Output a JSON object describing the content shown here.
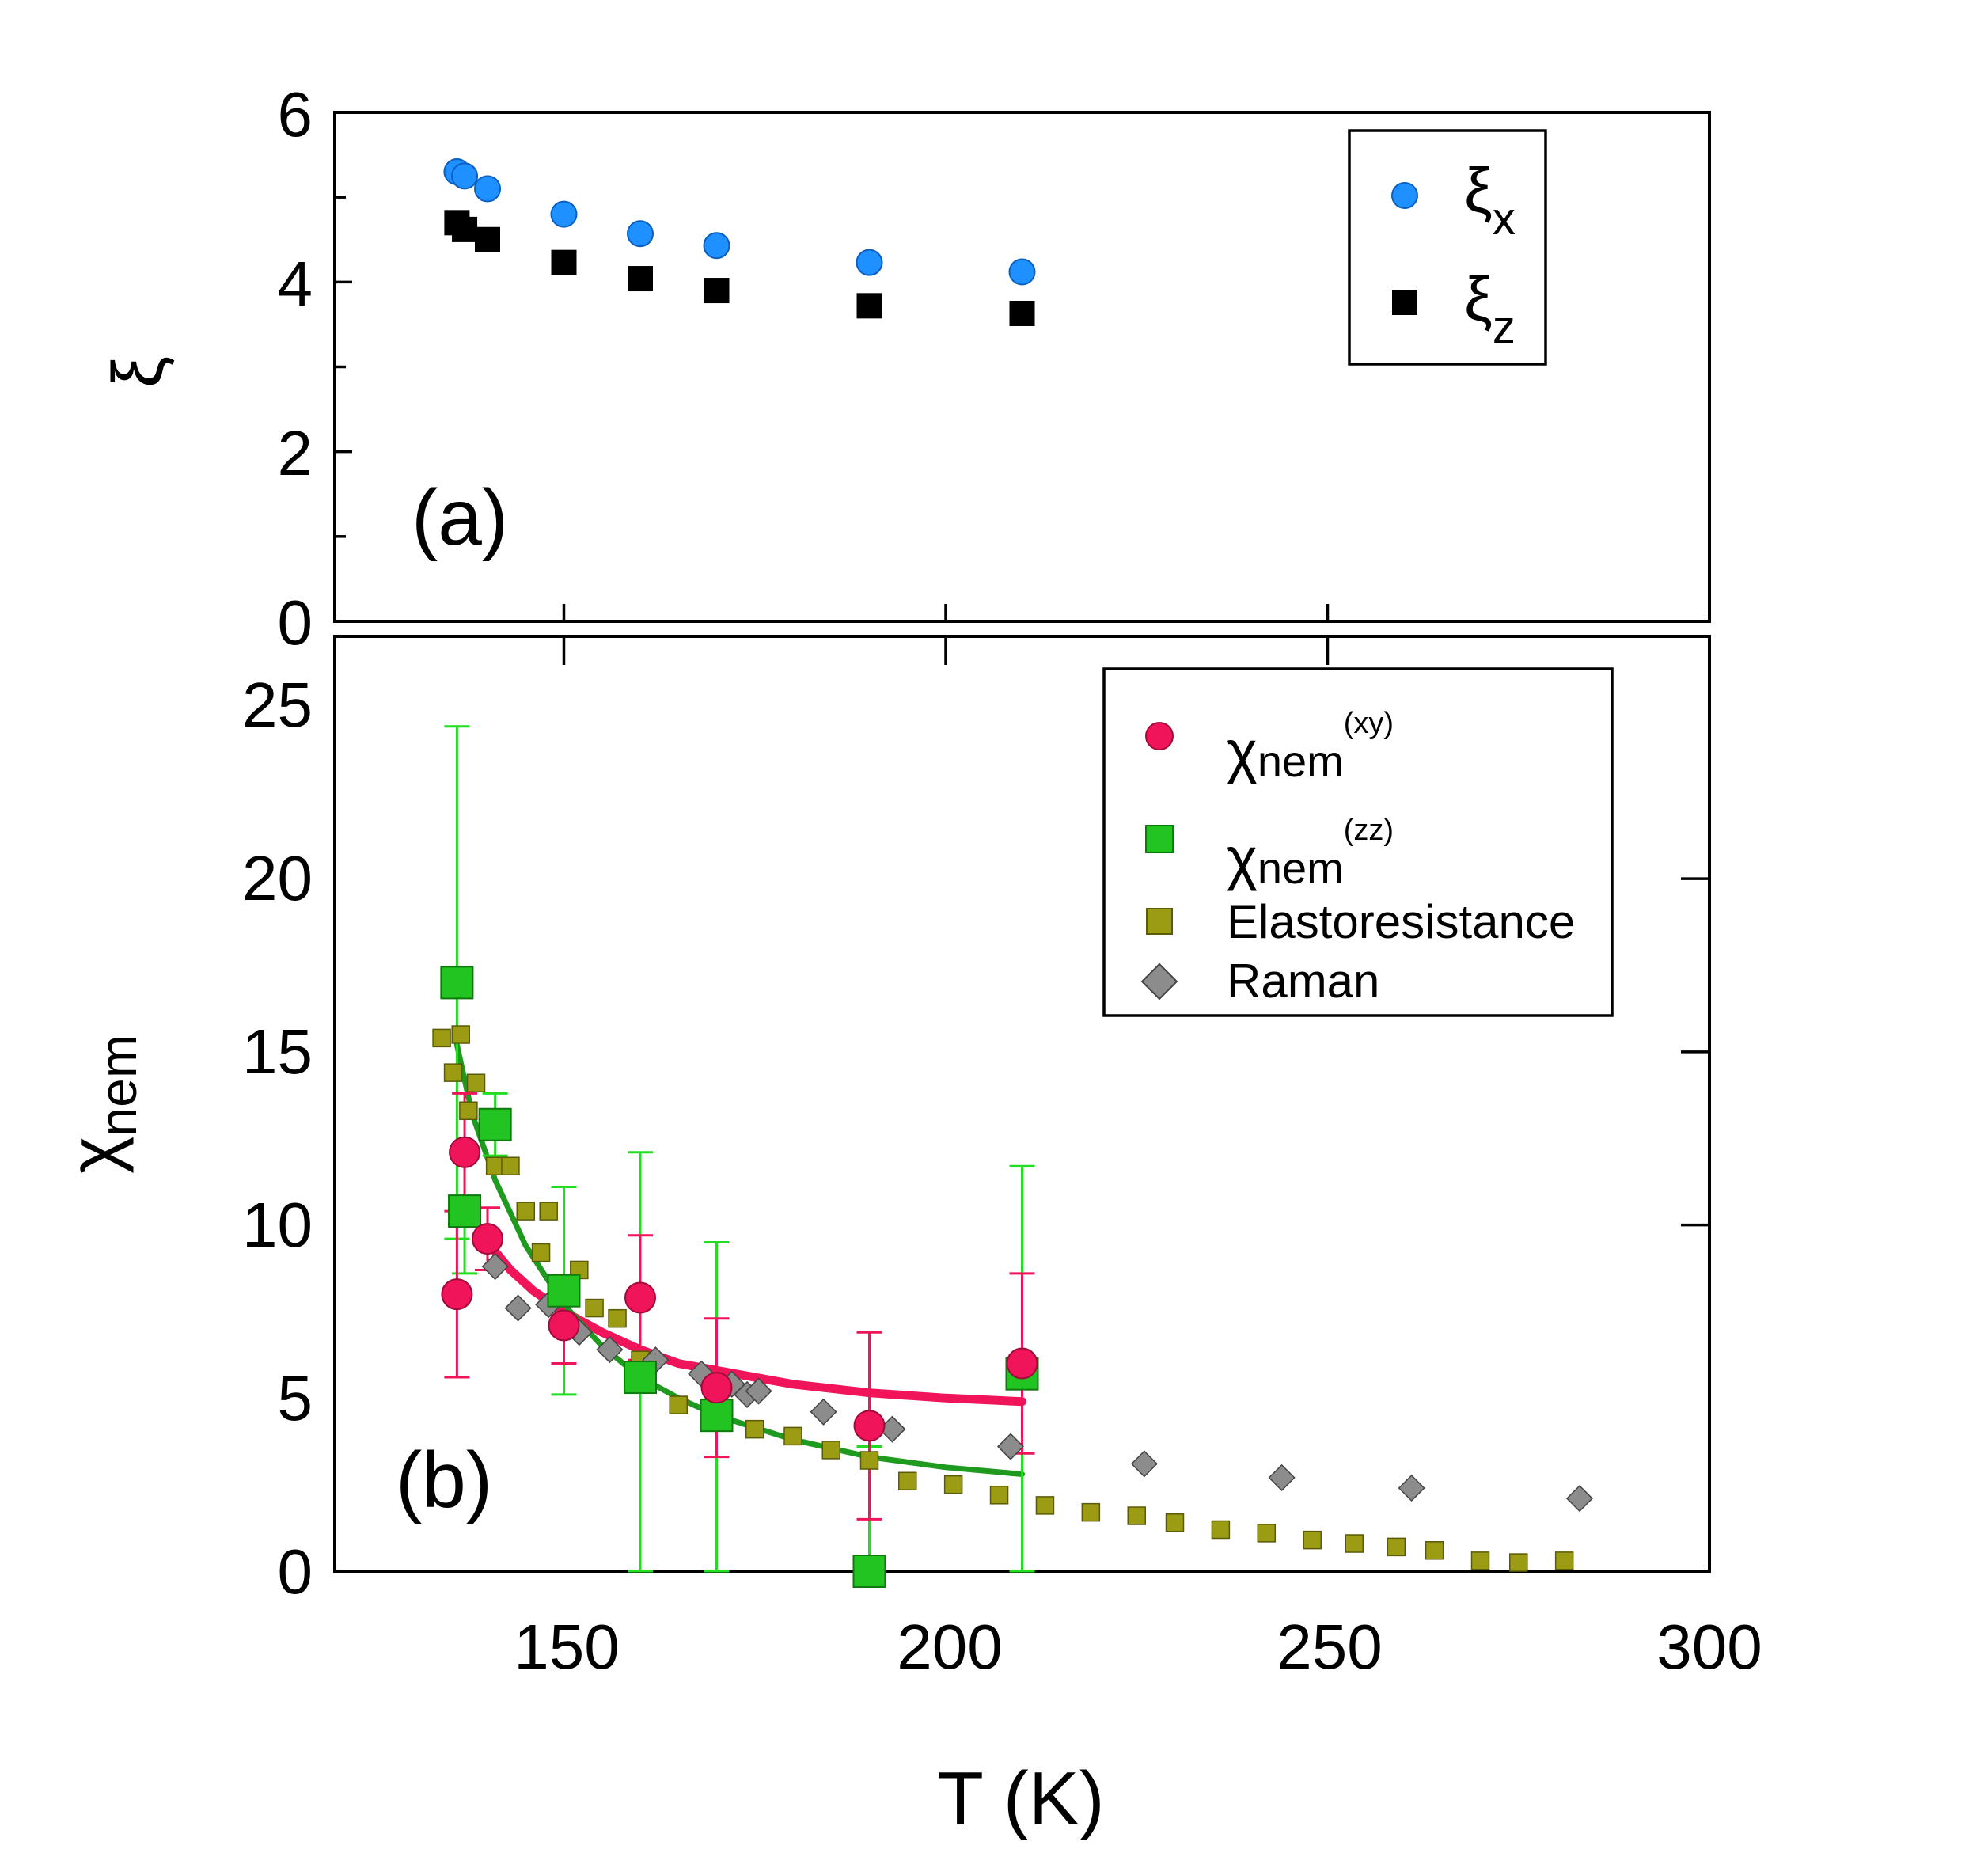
{
  "chart_data": [
    {
      "panel": "(a)",
      "type": "scatter",
      "xlabel": "T (K)",
      "ylabel": "ξ",
      "xlim": [
        120,
        300
      ],
      "ylim": [
        0,
        6
      ],
      "yticks": [
        "0",
        "2",
        "4",
        "6"
      ],
      "legend_position": "top-right",
      "series": [
        {
          "name": "ξx",
          "symbol": "ξ",
          "subscript": "x",
          "marker": "circle",
          "color": "#1e90ff",
          "x": [
            136,
            137,
            140,
            150,
            160,
            170,
            190,
            210
          ],
          "y": [
            5.3,
            5.25,
            5.1,
            4.8,
            4.57,
            4.43,
            4.23,
            4.12
          ]
        },
        {
          "name": "ξz",
          "symbol": "ξ",
          "subscript": "z",
          "marker": "square",
          "color": "#000000",
          "x": [
            136,
            137,
            140,
            150,
            160,
            170,
            190,
            210
          ],
          "y": [
            4.7,
            4.62,
            4.5,
            4.23,
            4.04,
            3.9,
            3.72,
            3.63
          ]
        }
      ]
    },
    {
      "panel": "(b)",
      "type": "scatter",
      "xlabel": "T (K)",
      "ylabel_symbol": "χ",
      "ylabel_sub": "nem",
      "xlim": [
        120,
        300
      ],
      "ylim": [
        0,
        27
      ],
      "xticks": [
        "150",
        "200",
        "250",
        "300"
      ],
      "yticks": [
        "0",
        "5",
        "10",
        "15",
        "20",
        "25"
      ],
      "legend_position": "top-right",
      "series": [
        {
          "name": "χnem(xy)",
          "symbol": "χ",
          "subscript": "nem",
          "superscript": "(xy)",
          "marker": "circle",
          "color": "#f0145a",
          "x": [
            136,
            137,
            140,
            150,
            160,
            170,
            190,
            210
          ],
          "y": [
            8.0,
            12.1,
            9.6,
            7.1,
            7.9,
            5.3,
            4.2,
            6.0
          ],
          "err": [
            2.4,
            1.7,
            0.9,
            1.1,
            1.8,
            2.0,
            2.7,
            2.6
          ]
        },
        {
          "name": "χnem(zz)",
          "symbol": "χ",
          "subscript": "nem",
          "superscript": "(zz)",
          "marker": "square",
          "color": "#22c422",
          "x": [
            136,
            137,
            141,
            150,
            160,
            170,
            190,
            210
          ],
          "y": [
            17.0,
            10.4,
            12.9,
            8.1,
            5.6,
            4.5,
            0.0,
            5.7
          ],
          "err": [
            7.4,
            1.8,
            0.9,
            3.0,
            6.5,
            5.0,
            3.6,
            6.0
          ]
        },
        {
          "name": "Elastoresistance",
          "marker": "small-square",
          "color": "#9c9c14",
          "x": [
            134,
            135.5,
            136.5,
            137.5,
            138.5,
            141,
            143,
            145,
            147,
            148,
            150,
            152,
            154,
            157,
            160,
            165,
            170,
            175,
            180,
            185,
            190,
            195,
            201,
            207,
            213,
            219,
            225,
            230,
            236,
            242,
            248,
            253.5,
            259,
            264,
            270,
            275,
            281
          ],
          "y": [
            15.4,
            14.4,
            15.5,
            13.3,
            14.1,
            11.7,
            11.7,
            10.4,
            9.2,
            10.4,
            8.2,
            8.7,
            7.6,
            7.3,
            6.1,
            4.8,
            4.5,
            4.1,
            3.9,
            3.5,
            3.2,
            2.6,
            2.5,
            2.2,
            1.9,
            1.7,
            1.6,
            1.4,
            1.2,
            1.1,
            0.9,
            0.8,
            0.7,
            0.6,
            0.3,
            0.25,
            0.3
          ]
        },
        {
          "name": "Raman",
          "marker": "diamond",
          "color": "#8c8c8c",
          "x": [
            141,
            144,
            148,
            152,
            156,
            162,
            168,
            172,
            174,
            175.5,
            184,
            193,
            208.5,
            226,
            244,
            261,
            283
          ],
          "y": [
            8.8,
            7.6,
            7.7,
            6.9,
            6.4,
            6.1,
            5.7,
            5.4,
            5.1,
            5.2,
            4.6,
            4.1,
            3.6,
            3.1,
            2.7,
            2.4,
            2.1
          ]
        }
      ],
      "fits": [
        {
          "name": "χnem(xy) fit",
          "color": "#f0145a",
          "x": [
            140,
            143,
            146,
            150,
            155,
            160,
            165,
            170,
            180,
            190,
            200,
            210
          ],
          "y": [
            9.5,
            8.7,
            8.1,
            7.5,
            6.9,
            6.4,
            6.0,
            5.8,
            5.4,
            5.15,
            5.0,
            4.9
          ]
        },
        {
          "name": "χnem(zz) fit",
          "color": "#1e9a1e",
          "x": [
            136,
            138,
            141,
            145,
            150,
            155,
            160,
            165,
            170,
            180,
            190,
            200,
            210
          ],
          "y": [
            15.2,
            13.2,
            11.3,
            9.4,
            7.7,
            6.5,
            5.6,
            5.0,
            4.5,
            3.8,
            3.3,
            3.0,
            2.8
          ]
        }
      ]
    }
  ]
}
